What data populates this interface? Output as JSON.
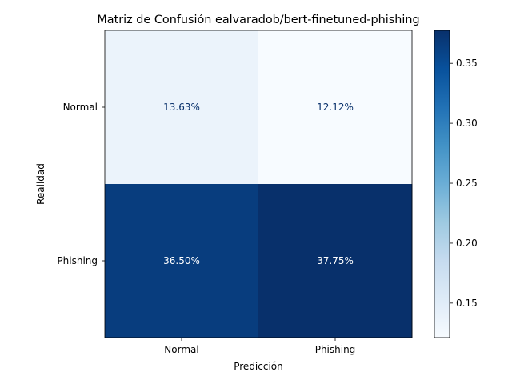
{
  "chart_data": {
    "type": "heatmap",
    "title": "Matriz de Confusión ealvaradob/bert-finetuned-phishing",
    "xlabel": "Predicción",
    "ylabel": "Realidad",
    "x_categories": [
      "Normal",
      "Phishing"
    ],
    "y_categories": [
      "Normal",
      "Phishing"
    ],
    "values": [
      [
        0.1363,
        0.1212
      ],
      [
        0.365,
        0.3775
      ]
    ],
    "cell_labels": [
      [
        "13.63%",
        "12.12%"
      ],
      [
        "36.50%",
        "37.75%"
      ]
    ],
    "colormap": "Blues",
    "color_range": [
      0.1212,
      0.3775
    ],
    "colorbar_ticks": [
      "0.15",
      "0.20",
      "0.25",
      "0.30",
      "0.35"
    ],
    "colorbar_tick_values": [
      0.15,
      0.2,
      0.25,
      0.3,
      0.35
    ]
  }
}
